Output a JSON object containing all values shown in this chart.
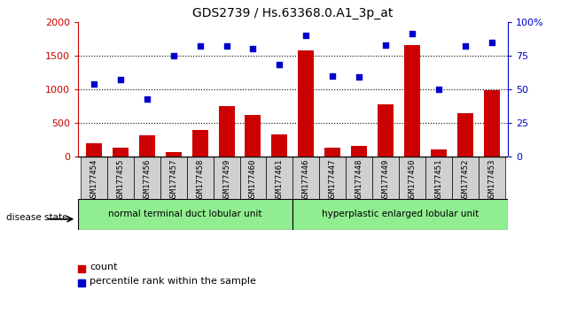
{
  "title": "GDS2739 / Hs.63368.0.A1_3p_at",
  "samples": [
    "GSM177454",
    "GSM177455",
    "GSM177456",
    "GSM177457",
    "GSM177458",
    "GSM177459",
    "GSM177460",
    "GSM177461",
    "GSM177446",
    "GSM177447",
    "GSM177448",
    "GSM177449",
    "GSM177450",
    "GSM177451",
    "GSM177452",
    "GSM177453"
  ],
  "counts": [
    200,
    130,
    310,
    65,
    390,
    750,
    620,
    330,
    1580,
    130,
    155,
    775,
    1650,
    110,
    645,
    985
  ],
  "percentiles": [
    54,
    57,
    43,
    75,
    82,
    82,
    80,
    68,
    90,
    60,
    59,
    83,
    91,
    50,
    82,
    85
  ],
  "group1_label": "normal terminal duct lobular unit",
  "group2_label": "hyperplastic enlarged lobular unit",
  "group1_count": 8,
  "group2_count": 8,
  "bar_color": "#cc0000",
  "dot_color": "#0000cc",
  "left_axis_color": "#cc0000",
  "right_axis_color": "#0000cc",
  "ylim_left": [
    0,
    2000
  ],
  "ylim_right": [
    0,
    100
  ],
  "yticks_left": [
    0,
    500,
    1000,
    1500,
    2000
  ],
  "yticks_right": [
    0,
    25,
    50,
    75,
    100
  ],
  "ytick_labels_right": [
    "0",
    "25",
    "50",
    "75",
    "100%"
  ],
  "grid_values": [
    500,
    1000,
    1500
  ],
  "group1_color": "#90ee90",
  "group2_color": "#90ee90",
  "disease_state_label": "disease state",
  "legend_count_label": "count",
  "legend_pct_label": "percentile rank within the sample",
  "tick_bg_color": "#d0d0d0",
  "background_color": "#ffffff"
}
